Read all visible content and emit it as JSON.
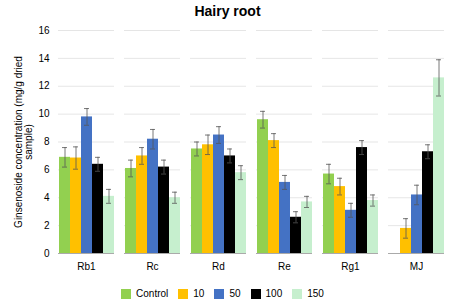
{
  "chart_data": {
    "type": "bar",
    "title": "Hairy root",
    "ylabel": "Ginsenoside concentration (mg/g dried\nsample)",
    "categories": [
      "Rb1",
      "Rc",
      "Rd",
      "Re",
      "Rg1",
      "MJ"
    ],
    "series": [
      {
        "name": "Control",
        "color": "#92d050",
        "values": [
          6.9,
          6.1,
          7.5,
          9.6,
          5.7,
          0.0
        ],
        "errors": [
          0.7,
          0.6,
          0.5,
          0.6,
          0.7,
          0.0
        ]
      },
      {
        "name": "10",
        "color": "#ffc000",
        "values": [
          6.85,
          7.0,
          7.8,
          8.1,
          4.8,
          1.8
        ],
        "errors": [
          0.8,
          0.6,
          0.7,
          0.5,
          0.6,
          0.7
        ]
      },
      {
        "name": "50",
        "color": "#4472c4",
        "values": [
          9.8,
          8.2,
          8.5,
          5.1,
          3.1,
          4.2
        ],
        "errors": [
          0.6,
          0.7,
          0.6,
          0.5,
          0.5,
          0.7
        ]
      },
      {
        "name": "100",
        "color": "#000000",
        "values": [
          6.4,
          6.2,
          7.0,
          2.6,
          7.6,
          7.3
        ],
        "errors": [
          0.5,
          0.5,
          0.5,
          0.4,
          0.5,
          0.5
        ]
      },
      {
        "name": "150",
        "color": "#c6efce",
        "values": [
          4.1,
          4.0,
          5.8,
          3.7,
          3.8,
          12.6
        ],
        "errors": [
          0.5,
          0.4,
          0.5,
          0.4,
          0.4,
          1.3
        ]
      }
    ],
    "ylim": [
      0,
      16
    ],
    "yticks": [
      0,
      2,
      4,
      6,
      8,
      10,
      12,
      14,
      16
    ],
    "grid": true,
    "legend": "bottom"
  }
}
